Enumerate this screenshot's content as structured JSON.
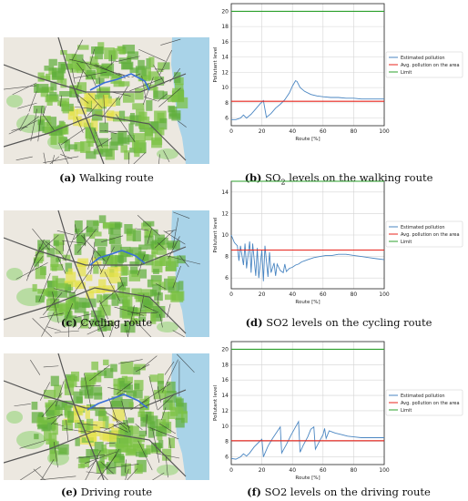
{
  "panels": [
    {
      "map_caption": {
        "letter": "(a)",
        "text": " Walking route"
      },
      "chart_caption": {
        "letter": "(b)",
        "prefix": " SO",
        "sub": "2",
        "suffix": " levels on the walking route"
      }
    },
    {
      "map_caption": {
        "letter": "(c)",
        "text": " Cycling route"
      },
      "chart_caption": {
        "letter": "(d)",
        "prefix": " SO2 levels on the cycling route",
        "sub": "",
        "suffix": ""
      }
    },
    {
      "map_caption": {
        "letter": "(e)",
        "text": " Driving route"
      },
      "chart_caption": {
        "letter": "(f)",
        "prefix": " SO2 levels on the driving route",
        "sub": "",
        "suffix": ""
      }
    }
  ],
  "colors": {
    "estimated": "#4a86c2",
    "average": "#e8241c",
    "limit": "#2ca02c"
  },
  "chart_data": [
    {
      "type": "line",
      "xlabel": "Route [%]",
      "ylabel": "Pollutant level",
      "xlim": [
        0,
        100
      ],
      "ylim": [
        5,
        21
      ],
      "xticks": [
        0,
        20,
        40,
        60,
        80,
        100
      ],
      "yticks": [
        6,
        8,
        10,
        12,
        14,
        16,
        18,
        20
      ],
      "grid": true,
      "legend": "center-right",
      "series": [
        {
          "name": "Estimated pollution",
          "x": [
            0,
            3,
            6,
            8,
            10,
            13,
            16,
            19,
            21,
            23,
            26,
            29,
            32,
            35,
            38,
            40,
            42,
            43,
            45,
            48,
            52,
            56,
            60,
            65,
            70,
            75,
            80,
            85,
            90,
            95,
            100
          ],
          "y": [
            5.8,
            5.8,
            6.0,
            6.4,
            6.0,
            6.5,
            7.2,
            7.9,
            8.3,
            6.1,
            6.6,
            7.3,
            7.8,
            8.4,
            9.3,
            10.2,
            10.9,
            10.8,
            10.0,
            9.5,
            9.1,
            8.9,
            8.8,
            8.7,
            8.7,
            8.6,
            8.6,
            8.5,
            8.5,
            8.5,
            8.5
          ]
        },
        {
          "name": "Avg. pollution on the area",
          "x": [
            0,
            100
          ],
          "y": [
            8.2,
            8.2
          ]
        },
        {
          "name": "Limit",
          "x": [
            0,
            100
          ],
          "y": [
            20,
            20
          ]
        }
      ]
    },
    {
      "type": "line",
      "xlabel": "Route [%]",
      "ylabel": "Pollutant level",
      "xlim": [
        0,
        100
      ],
      "ylim": [
        5,
        15
      ],
      "xticks": [
        0,
        20,
        40,
        60,
        80,
        100
      ],
      "yticks": [
        6,
        8,
        10,
        12,
        14
      ],
      "grid": true,
      "legend": "center-right",
      "series": [
        {
          "name": "Estimated pollution",
          "x": [
            0,
            2,
            4,
            5,
            6,
            8,
            9,
            10,
            12,
            13,
            14,
            16,
            17,
            18,
            20,
            21,
            22,
            24,
            25,
            26,
            28,
            29,
            30,
            32,
            34,
            35,
            36,
            38,
            40,
            42,
            44,
            46,
            48,
            50,
            54,
            58,
            62,
            66,
            70,
            75,
            80,
            85,
            90,
            95,
            100
          ],
          "y": [
            10.0,
            9.3,
            9.0,
            7.6,
            9.0,
            7.2,
            9.2,
            6.9,
            9.4,
            6.5,
            9.2,
            6.2,
            8.8,
            6.0,
            8.6,
            5.7,
            9.0,
            6.1,
            8.4,
            6.5,
            7.4,
            6.2,
            7.3,
            6.7,
            6.5,
            7.3,
            6.6,
            6.9,
            7.0,
            7.2,
            7.3,
            7.5,
            7.6,
            7.7,
            7.9,
            8.0,
            8.1,
            8.1,
            8.2,
            8.2,
            8.1,
            8.0,
            7.9,
            7.8,
            7.7
          ]
        },
        {
          "name": "Avg. pollution on the area",
          "x": [
            0,
            100
          ],
          "y": [
            8.6,
            8.6
          ]
        },
        {
          "name": "Limit",
          "x": [
            0,
            100
          ],
          "y": [
            15,
            15
          ]
        }
      ]
    },
    {
      "type": "line",
      "xlabel": "Route [%]",
      "ylabel": "Pollutant level",
      "xlim": [
        0,
        100
      ],
      "ylim": [
        5,
        21
      ],
      "xticks": [
        0,
        20,
        40,
        60,
        80,
        100
      ],
      "yticks": [
        6,
        8,
        10,
        12,
        14,
        16,
        18,
        20
      ],
      "grid": true,
      "legend": "center-right",
      "series": [
        {
          "name": "Estimated pollution",
          "x": [
            0,
            3,
            6,
            8,
            10,
            12,
            15,
            18,
            20,
            21,
            24,
            27,
            30,
            32,
            33,
            36,
            39,
            42,
            44,
            45,
            47,
            50,
            52,
            54,
            55,
            57,
            60,
            61,
            62,
            64,
            68,
            72,
            76,
            80,
            85,
            90,
            95,
            100
          ],
          "y": [
            5.8,
            5.7,
            6.0,
            6.4,
            6.1,
            6.5,
            7.3,
            7.9,
            8.3,
            6.0,
            7.4,
            8.4,
            9.3,
            9.9,
            6.5,
            7.6,
            8.8,
            9.9,
            10.6,
            6.6,
            7.5,
            8.6,
            9.6,
            9.9,
            7.0,
            7.8,
            8.9,
            9.7,
            8.4,
            9.4,
            9.1,
            8.9,
            8.7,
            8.6,
            8.5,
            8.5,
            8.5,
            8.5
          ]
        },
        {
          "name": "Avg. pollution on the area",
          "x": [
            0,
            100
          ],
          "y": [
            8.1,
            8.1
          ]
        },
        {
          "name": "Limit",
          "x": [
            0,
            100
          ],
          "y": [
            20,
            20
          ]
        }
      ]
    }
  ]
}
